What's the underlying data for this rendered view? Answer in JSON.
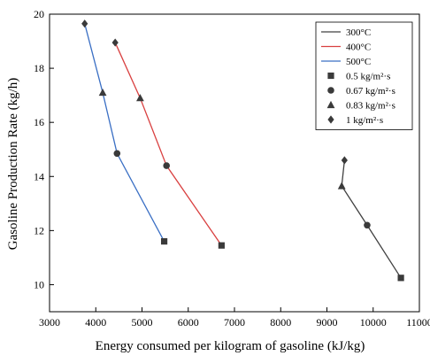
{
  "chart_data": {
    "type": "line",
    "xlabel": "Energy consumed per kilogram of gasoline (kJ/kg)",
    "ylabel": "Gasoline Production Rate (kg/h)",
    "xlim": [
      3000,
      11000
    ],
    "ylim": [
      9,
      20
    ],
    "xticks": [
      3000,
      4000,
      5000,
      6000,
      7000,
      8000,
      9000,
      10000,
      11000
    ],
    "yticks": [
      10,
      12,
      14,
      16,
      18,
      20
    ],
    "grid": false,
    "legend_position": "top-right",
    "series": [
      {
        "name": "300°C",
        "color": "#404040",
        "points": [
          {
            "x": 10600,
            "y": 10.25,
            "marker": "square"
          },
          {
            "x": 9870,
            "y": 12.2,
            "marker": "circle"
          },
          {
            "x": 9320,
            "y": 13.65,
            "marker": "triangle"
          },
          {
            "x": 9380,
            "y": 14.6,
            "marker": "diamond"
          }
        ]
      },
      {
        "name": "400°C",
        "color": "#d94040",
        "points": [
          {
            "x": 6720,
            "y": 11.45,
            "marker": "square"
          },
          {
            "x": 5530,
            "y": 14.4,
            "marker": "circle"
          },
          {
            "x": 4960,
            "y": 16.9,
            "marker": "triangle"
          },
          {
            "x": 4420,
            "y": 18.95,
            "marker": "diamond"
          }
        ]
      },
      {
        "name": "500°C",
        "color": "#3a6fc4",
        "points": [
          {
            "x": 5480,
            "y": 11.6,
            "marker": "square"
          },
          {
            "x": 4460,
            "y": 14.85,
            "marker": "circle"
          },
          {
            "x": 4150,
            "y": 17.1,
            "marker": "triangle"
          },
          {
            "x": 3760,
            "y": 19.65,
            "marker": "diamond"
          }
        ]
      }
    ],
    "marker_legend": [
      {
        "label": "0.5 kg/m²·s",
        "marker": "square"
      },
      {
        "label": "0.67 kg/m²·s",
        "marker": "circle"
      },
      {
        "label": "0.83 kg/m²·s",
        "marker": "triangle"
      },
      {
        "label": "1 kg/m²·s",
        "marker": "diamond"
      }
    ]
  }
}
